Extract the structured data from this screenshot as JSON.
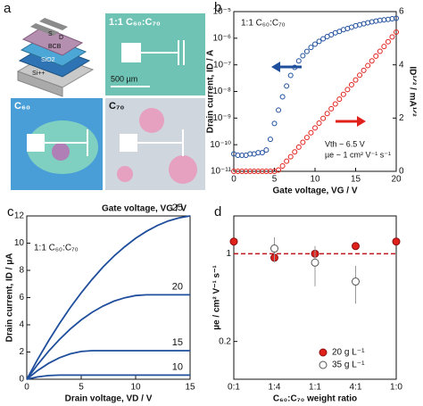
{
  "panel_a": {
    "panel": "a",
    "device_layers": [
      "D",
      "S",
      "BCB",
      "SiO2",
      "Si++"
    ],
    "images": [
      {
        "label": "1:1 C₆₀:C₇₀",
        "scale_bar": "500 µm"
      },
      {
        "label": "C₆₀"
      },
      {
        "label": "C₇₀"
      }
    ]
  },
  "chart_data": [
    {
      "panel": "b",
      "type": "scatter",
      "title": "1:1 C₆₀:C₇₀",
      "xlabel": "Gate voltage, VG / V",
      "ylabel": "Drain current, ID / A",
      "y2label": "ID¹ᐟ² / mA¹ᐟ²",
      "annotations": [
        "Vth ~ 6.5 V",
        "µe ~ 1 cm² V⁻¹ s⁻¹"
      ],
      "x": [
        0,
        0.5,
        1,
        1.5,
        2,
        2.5,
        3,
        3.5,
        4,
        4.5,
        5,
        5.5,
        6,
        6.5,
        7,
        7.5,
        8,
        8.5,
        9,
        9.5,
        10,
        10.5,
        11,
        11.5,
        12,
        12.5,
        13,
        13.5,
        14,
        14.5,
        15,
        15.5,
        16,
        16.5,
        17,
        17.5,
        18,
        18.5,
        19,
        19.5,
        20
      ],
      "xlim": [
        0,
        20
      ],
      "xticks": [
        0,
        5,
        10,
        15,
        20
      ],
      "ylog": true,
      "ylim": [
        1e-11,
        1e-05
      ],
      "yticks": [
        {
          "value": 1e-11,
          "label": "10⁻¹¹"
        },
        {
          "value": 1e-10,
          "label": "10⁻¹⁰"
        },
        {
          "value": 1e-09,
          "label": "10⁻⁹"
        },
        {
          "value": 1e-08,
          "label": "10⁻⁸"
        },
        {
          "value": 1e-07,
          "label": "10⁻⁷"
        },
        {
          "value": 1e-06,
          "label": "10⁻⁶"
        },
        {
          "value": 1e-05,
          "label": "10⁻⁵"
        }
      ],
      "y2lim": [
        0,
        6
      ],
      "y2ticks": [
        0,
        2,
        4,
        6
      ],
      "series": [
        {
          "name": "ID",
          "color": "#1f4e9c",
          "values": [
            4.5e-11,
            4e-11,
            4e-11,
            4e-11,
            4.5e-11,
            4.5e-11,
            5e-11,
            5e-11,
            6.3e-11,
            1.6e-10,
            6.3e-10,
            2e-09,
            6.3e-09,
            1.6e-08,
            4e-08,
            8e-08,
            1.4e-07,
            2.2e-07,
            3.2e-07,
            4.5e-07,
            6e-07,
            7.6e-07,
            9.5e-07,
            1.15e-06,
            1.35e-06,
            1.6e-06,
            1.8e-06,
            2.1e-06,
            2.3e-06,
            2.6e-06,
            2.95e-06,
            3.2e-06,
            3.5e-06,
            3.8e-06,
            4.1e-06,
            4.4e-06,
            4.7e-06,
            4.9e-06,
            5.1e-06,
            5.4e-06,
            5.6e-06
          ]
        },
        {
          "name": "ID¹ᐟ²",
          "color": "#e0201b",
          "axis": "y2",
          "values": [
            0,
            0,
            0,
            0,
            0,
            0,
            0,
            0,
            0,
            0,
            0,
            0.05,
            0.2,
            0.38,
            0.55,
            0.73,
            0.91,
            1.09,
            1.27,
            1.45,
            1.63,
            1.81,
            1.99,
            2.17,
            2.35,
            2.53,
            2.71,
            2.89,
            3.07,
            3.25,
            3.43,
            3.61,
            3.79,
            3.97,
            4.15,
            4.33,
            4.51,
            4.69,
            4.87,
            5.05,
            5.23
          ]
        }
      ]
    },
    {
      "panel": "c",
      "type": "line",
      "title": "1:1 C₆₀:C₇₀",
      "legend_title": "Gate voltage, VG / V",
      "label_color": "#e0201b",
      "xlabel": "Drain voltage, VD / V",
      "ylabel": "Drain current, ID / µA",
      "x": [
        0,
        1,
        2,
        3,
        4,
        5,
        6,
        7,
        8,
        9,
        10,
        11,
        12,
        13,
        14,
        15
      ],
      "xlim": [
        0,
        15
      ],
      "xticks": [
        0,
        5,
        10,
        15
      ],
      "ylim": [
        0,
        12
      ],
      "yticks": [
        0,
        2,
        4,
        6,
        8,
        10,
        12
      ],
      "series": [
        {
          "name": "25",
          "color": "#1f4e9c",
          "values": [
            0,
            1.46,
            2.82,
            4.09,
            5.27,
            6.35,
            7.34,
            8.24,
            9.04,
            9.74,
            10.36,
            10.87,
            11.3,
            11.63,
            11.86,
            12.0
          ]
        },
        {
          "name": "20",
          "color": "#1f4e9c",
          "values": [
            0,
            1.08,
            2.05,
            2.92,
            3.69,
            4.36,
            4.92,
            5.38,
            5.74,
            5.99,
            6.15,
            6.2,
            6.2,
            6.2,
            6.2,
            6.2
          ]
        },
        {
          "name": "15",
          "color": "#1f4e9c",
          "values": [
            0,
            0.64,
            1.17,
            1.58,
            1.87,
            2.04,
            2.1,
            2.1,
            2.1,
            2.1,
            2.1,
            2.1,
            2.1,
            2.1,
            2.1,
            2.1
          ]
        },
        {
          "name": "10",
          "color": "#1f4e9c",
          "values": [
            0,
            0.17,
            0.27,
            0.3,
            0.3,
            0.3,
            0.3,
            0.3,
            0.3,
            0.3,
            0.3,
            0.3,
            0.3,
            0.3,
            0.3,
            0.3
          ]
        }
      ]
    },
    {
      "panel": "d",
      "type": "scatter",
      "xlabel": "C₆₀:C₇₀ weight ratio",
      "ylabel": "µe / cm² V⁻¹ s⁻¹",
      "categories": [
        "0:1",
        "1:4",
        "1:1",
        "4:1",
        "1:0"
      ],
      "ylog": true,
      "ylim": [
        0.1,
        2
      ],
      "yticks": [
        0.2,
        1
      ],
      "reference_line": 1,
      "reference_color": "#c0161b",
      "series": [
        {
          "name": "20 g L⁻¹",
          "color": "#e0201b",
          "filled": true,
          "values": [
            1.25,
            0.93,
            1.0,
            1.15,
            1.25
          ],
          "errors": [
            0.03,
            0.03,
            0.05,
            0.04,
            0.03
          ]
        },
        {
          "name": "35 g L⁻¹",
          "color": "#555555",
          "filled": false,
          "values": [
            null,
            1.1,
            0.85,
            0.6,
            null
          ],
          "errors": [
            null,
            0.25,
            0.3,
            0.2,
            null
          ]
        }
      ]
    }
  ]
}
